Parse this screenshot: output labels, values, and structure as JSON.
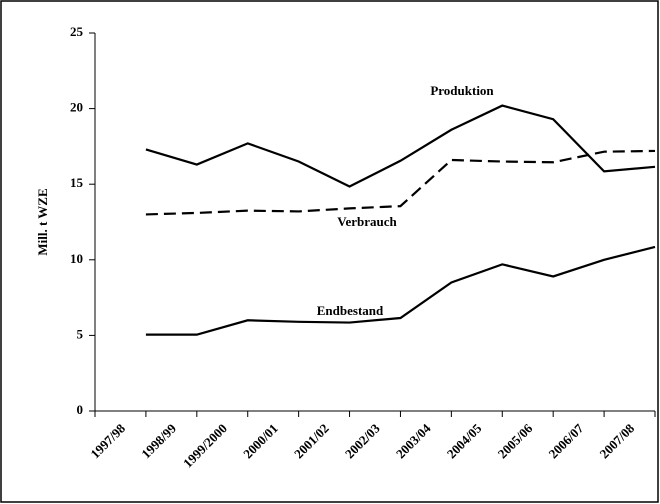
{
  "chart_data": {
    "type": "line",
    "y_label": "Mill. t WZE",
    "categories": [
      "1997/98",
      "1998/99",
      "1999/2000",
      "2000/01",
      "2001/02",
      "2002/03",
      "2003/04",
      "2004/05",
      "2005/06",
      "2006/07",
      "2007/08"
    ],
    "series": [
      {
        "name": "Produktion",
        "color": "#000000",
        "dashed": false,
        "values": [
          17.3,
          16.3,
          17.7,
          16.5,
          14.85,
          16.55,
          18.6,
          20.2,
          19.3,
          15.85,
          16.15
        ]
      },
      {
        "name": "Verbrauch",
        "color": "#000000",
        "dashed": true,
        "values": [
          13.0,
          13.1,
          13.25,
          13.2,
          13.4,
          13.55,
          16.6,
          16.5,
          16.45,
          17.15,
          17.2
        ]
      },
      {
        "name": "Endbestand",
        "color": "#000000",
        "dashed": false,
        "values": [
          5.05,
          5.05,
          6.0,
          5.9,
          5.85,
          6.15,
          8.5,
          9.7,
          8.9,
          10.0,
          10.85
        ]
      }
    ],
    "ylim": [
      0,
      25
    ],
    "yticks": [
      0,
      5,
      10,
      15,
      20,
      25
    ],
    "grid": false
  }
}
